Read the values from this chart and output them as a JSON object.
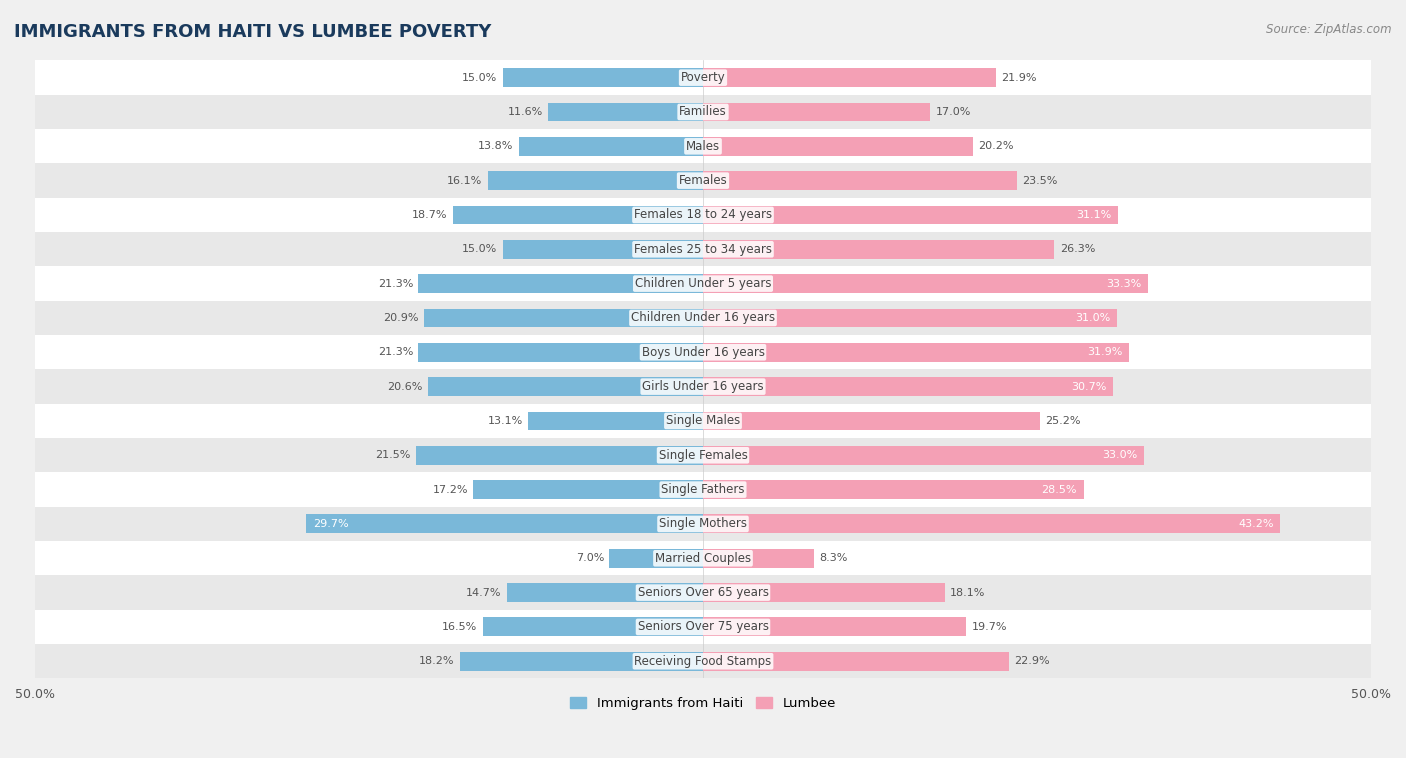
{
  "title": "IMMIGRANTS FROM HAITI VS LUMBEE POVERTY",
  "source": "Source: ZipAtlas.com",
  "categories": [
    "Poverty",
    "Families",
    "Males",
    "Females",
    "Females 18 to 24 years",
    "Females 25 to 34 years",
    "Children Under 5 years",
    "Children Under 16 years",
    "Boys Under 16 years",
    "Girls Under 16 years",
    "Single Males",
    "Single Females",
    "Single Fathers",
    "Single Mothers",
    "Married Couples",
    "Seniors Over 65 years",
    "Seniors Over 75 years",
    "Receiving Food Stamps"
  ],
  "haiti_values": [
    15.0,
    11.6,
    13.8,
    16.1,
    18.7,
    15.0,
    21.3,
    20.9,
    21.3,
    20.6,
    13.1,
    21.5,
    17.2,
    29.7,
    7.0,
    14.7,
    16.5,
    18.2
  ],
  "lumbee_values": [
    21.9,
    17.0,
    20.2,
    23.5,
    31.1,
    26.3,
    33.3,
    31.0,
    31.9,
    30.7,
    25.2,
    33.0,
    28.5,
    43.2,
    8.3,
    18.1,
    19.7,
    22.9
  ],
  "haiti_color": "#7ab8d9",
  "lumbee_color": "#f4a0b5",
  "axis_limit": 50.0,
  "background_color": "#f0f0f0",
  "row_color_odd": "#ffffff",
  "row_color_even": "#e8e8e8",
  "bar_height": 0.55,
  "legend_haiti": "Immigrants from Haiti",
  "legend_lumbee": "Lumbee",
  "label_inside_threshold": 28.0,
  "title_color": "#1a3a5c",
  "source_color": "#888888",
  "label_color_outside": "#555555",
  "label_color_inside": "#ffffff"
}
